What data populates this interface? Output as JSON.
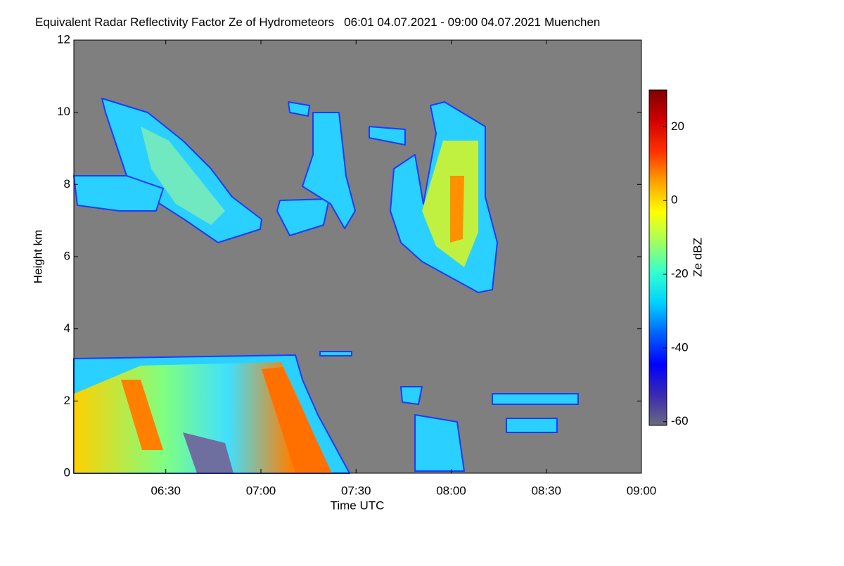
{
  "chart_data": {
    "type": "heatmap",
    "title": "Equivalent Radar Reflectivity Factor Ze of Hydrometeors",
    "time_range": "06:01 04.07.2021 - 09:00 04.07.2021",
    "location": "Muenchen",
    "xlabel": "Time UTC",
    "ylabel": "Height km",
    "xlim": [
      361,
      540
    ],
    "xticks": [
      {
        "value": 390,
        "label": "06:30"
      },
      {
        "value": 420,
        "label": "07:00"
      },
      {
        "value": 450,
        "label": "07:30"
      },
      {
        "value": 480,
        "label": "08:00"
      },
      {
        "value": 510,
        "label": "08:30"
      },
      {
        "value": 540,
        "label": "09:00"
      }
    ],
    "ylim": [
      0,
      12
    ],
    "yticks": [
      0,
      2,
      4,
      6,
      8,
      10,
      12
    ],
    "background_color": "#7f7f7f",
    "colorbar": {
      "label": "Ze dBZ",
      "zlim": [
        -61,
        30
      ],
      "ticks": [
        -60,
        -40,
        -20,
        0,
        20
      ],
      "colors": [
        "#6a6a80",
        "#3a2ab0",
        "#0000ff",
        "#0060ff",
        "#00d0ff",
        "#30ffd0",
        "#a0ff60",
        "#ffff00",
        "#ffa000",
        "#ff3000",
        "#d00000",
        "#800000"
      ]
    }
  }
}
